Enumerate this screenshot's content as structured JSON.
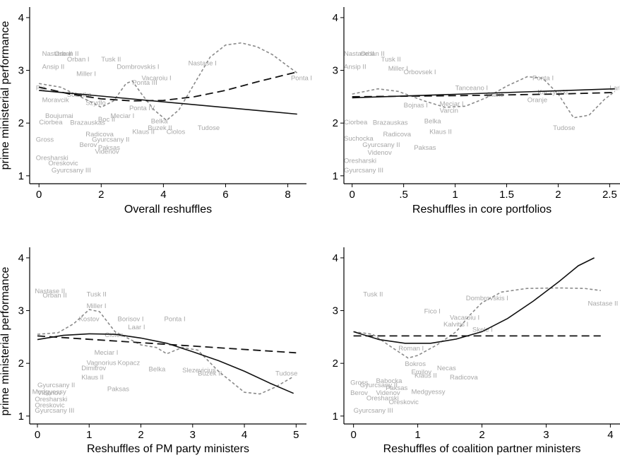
{
  "ylabel": "prime  ministerial performance",
  "chart_data": [
    {
      "type": "scatter",
      "xlabel": "Overall reshuffles",
      "ylabel": "prime  ministerial performance",
      "xlim": [
        -0.3,
        8.6
      ],
      "ylim": [
        0.85,
        4.2
      ],
      "xticks": [
        "0",
        "2",
        "4",
        "6",
        "8"
      ],
      "yticks": [
        "1",
        "2",
        "3",
        "4"
      ],
      "points": [
        {
          "label": "Nastase II",
          "x": 0.1,
          "y": 3.33
        },
        {
          "label": "Orban II",
          "x": 0.5,
          "y": 3.33
        },
        {
          "label": "Ansip II",
          "x": 0.1,
          "y": 3.08
        },
        {
          "label": "Orban I",
          "x": 0.9,
          "y": 3.22
        },
        {
          "label": "Tusk II",
          "x": 2.0,
          "y": 3.22
        },
        {
          "label": "Nastase I",
          "x": 4.8,
          "y": 3.15
        },
        {
          "label": "Dombrovskis I",
          "x": 2.5,
          "y": 3.08
        },
        {
          "label": "Miller I",
          "x": 1.2,
          "y": 2.95
        },
        {
          "label": "Vacaroiu I",
          "x": 3.3,
          "y": 2.87
        },
        {
          "label": "Ponta I",
          "x": 8.1,
          "y": 2.87
        },
        {
          "label": "Ponta III",
          "x": 3.0,
          "y": 2.78
        },
        {
          "label": "Pie",
          "x": -0.1,
          "y": 2.68
        },
        {
          "label": "Sobotka",
          "x": 0.9,
          "y": 2.55
        },
        {
          "label": "Moravcik",
          "x": 0.1,
          "y": 2.45
        },
        {
          "label": "Ponta IV",
          "x": 2.9,
          "y": 2.3
        },
        {
          "label": "Szydlo",
          "x": 1.5,
          "y": 2.4
        },
        {
          "label": "Meciar I",
          "x": 2.3,
          "y": 2.15
        },
        {
          "label": "Boc II",
          "x": 1.9,
          "y": 2.08
        },
        {
          "label": "Boujumai",
          "x": 0.2,
          "y": 2.15
        },
        {
          "label": "Ciorbea",
          "x": 0.0,
          "y": 2.03
        },
        {
          "label": "Brazauskas",
          "x": 1.0,
          "y": 2.02
        },
        {
          "label": "Belka",
          "x": 3.6,
          "y": 2.05
        },
        {
          "label": "Ciolos",
          "x": 4.1,
          "y": 1.85
        },
        {
          "label": "Buzek II",
          "x": 3.5,
          "y": 1.92
        },
        {
          "label": "Klaus II",
          "x": 3.0,
          "y": 1.85
        },
        {
          "label": "Tudose",
          "x": 5.1,
          "y": 1.92
        },
        {
          "label": "Radicova",
          "x": 1.5,
          "y": 1.8
        },
        {
          "label": "Berov",
          "x": 1.3,
          "y": 1.6
        },
        {
          "label": "Gross",
          "x": -0.1,
          "y": 1.7
        },
        {
          "label": "Gyurcsany II",
          "x": 1.7,
          "y": 1.7
        },
        {
          "label": "Paksas",
          "x": 1.9,
          "y": 1.55
        },
        {
          "label": "Videnov",
          "x": 1.8,
          "y": 1.47
        },
        {
          "label": "Oresharski",
          "x": -0.1,
          "y": 1.35
        },
        {
          "label": "Oreskovic",
          "x": 0.3,
          "y": 1.25
        },
        {
          "label": "Gyurcsany III",
          "x": 0.4,
          "y": 1.12
        }
      ],
      "curves": {
        "linear": [
          [
            0,
            2.62
          ],
          [
            8.3,
            2.17
          ]
        ],
        "quadratic": [
          [
            0,
            2.68
          ],
          [
            1,
            2.55
          ],
          [
            2,
            2.46
          ],
          [
            3,
            2.42
          ],
          [
            4,
            2.43
          ],
          [
            5,
            2.5
          ],
          [
            6,
            2.62
          ],
          [
            7,
            2.78
          ],
          [
            8.3,
            2.97
          ]
        ],
        "spline": [
          [
            0,
            2.75
          ],
          [
            0.7,
            2.68
          ],
          [
            1.5,
            2.45
          ],
          [
            2,
            2.3
          ],
          [
            2.4,
            2.42
          ],
          [
            2.8,
            2.75
          ],
          [
            3.0,
            2.8
          ],
          [
            3.3,
            2.55
          ],
          [
            3.7,
            2.25
          ],
          [
            4.1,
            2.05
          ],
          [
            4.5,
            2.25
          ],
          [
            5.0,
            2.75
          ],
          [
            5.5,
            3.25
          ],
          [
            6.0,
            3.48
          ],
          [
            6.5,
            3.52
          ],
          [
            7.0,
            3.45
          ],
          [
            7.5,
            3.3
          ],
          [
            8.0,
            3.08
          ],
          [
            8.3,
            2.95
          ]
        ]
      }
    },
    {
      "type": "scatter",
      "xlabel": "Reshuffles in core portfolios",
      "ylabel": "",
      "xlim": [
        -0.08,
        2.6
      ],
      "ylim": [
        0.85,
        4.2
      ],
      "xticks": [
        "0",
        ".5",
        "1",
        "1.5",
        "2",
        "2.5"
      ],
      "xtick_values": [
        0,
        0.5,
        1,
        1.5,
        2,
        2.5
      ],
      "yticks": [
        "1",
        "2",
        "3",
        "4"
      ],
      "points": [
        {
          "label": "Nastase II",
          "x": -0.08,
          "y": 3.33
        },
        {
          "label": "Orban II",
          "x": 0.08,
          "y": 3.33
        },
        {
          "label": "Tusk II",
          "x": 0.28,
          "y": 3.22
        },
        {
          "label": "Ansip II",
          "x": -0.08,
          "y": 3.08
        },
        {
          "label": "Miller I",
          "x": 0.35,
          "y": 3.05
        },
        {
          "label": "Orbovsek I",
          "x": 0.5,
          "y": 2.98
        },
        {
          "label": "Ponta I",
          "x": 1.75,
          "y": 2.87
        },
        {
          "label": "Tanceano I",
          "x": 1.0,
          "y": 2.68
        },
        {
          "label": "Kaczynski",
          "x": 1.8,
          "y": 2.6
        },
        {
          "label": "Gabis",
          "x": 1.3,
          "y": 2.55
        },
        {
          "label": "Lari I",
          "x": 2.5,
          "y": 2.68
        },
        {
          "label": "Oranje",
          "x": 1.7,
          "y": 2.45
        },
        {
          "label": "Meciar I",
          "x": 0.85,
          "y": 2.38
        },
        {
          "label": "Varcin",
          "x": 0.85,
          "y": 2.25
        },
        {
          "label": "Bojnas I",
          "x": 0.5,
          "y": 2.35
        },
        {
          "label": "Brazauskas",
          "x": 0.2,
          "y": 2.02
        },
        {
          "label": "Ciorbea",
          "x": -0.08,
          "y": 2.03
        },
        {
          "label": "Belka",
          "x": 0.7,
          "y": 2.05
        },
        {
          "label": "Tudose",
          "x": 1.95,
          "y": 1.92
        },
        {
          "label": "Klaus II",
          "x": 0.75,
          "y": 1.85
        },
        {
          "label": "Radicova",
          "x": 0.3,
          "y": 1.8
        },
        {
          "label": "Suchocka",
          "x": -0.08,
          "y": 1.72
        },
        {
          "label": "Gyurcsany II",
          "x": 0.1,
          "y": 1.6
        },
        {
          "label": "Paksas",
          "x": 0.6,
          "y": 1.55
        },
        {
          "label": "Videnov",
          "x": 0.15,
          "y": 1.45
        },
        {
          "label": "Oresharski",
          "x": -0.08,
          "y": 1.3
        },
        {
          "label": "Gyurcsany III",
          "x": -0.08,
          "y": 1.12
        }
      ],
      "curves": {
        "linear": [
          [
            0,
            2.48
          ],
          [
            2.55,
            2.65
          ]
        ],
        "quadratic": [
          [
            0,
            2.5
          ],
          [
            1,
            2.52
          ],
          [
            2,
            2.55
          ],
          [
            2.55,
            2.58
          ]
        ],
        "spline": [
          [
            0,
            2.55
          ],
          [
            0.25,
            2.65
          ],
          [
            0.45,
            2.6
          ],
          [
            0.7,
            2.42
          ],
          [
            0.9,
            2.3
          ],
          [
            1.1,
            2.32
          ],
          [
            1.3,
            2.48
          ],
          [
            1.5,
            2.7
          ],
          [
            1.7,
            2.88
          ],
          [
            1.85,
            2.85
          ],
          [
            2.0,
            2.55
          ],
          [
            2.15,
            2.1
          ],
          [
            2.3,
            2.15
          ],
          [
            2.45,
            2.45
          ],
          [
            2.55,
            2.6
          ]
        ]
      }
    },
    {
      "type": "scatter",
      "xlabel": "Reshuffles of PM party ministers",
      "ylabel": "prime  ministerial performance",
      "xlim": [
        -0.15,
        5.2
      ],
      "ylim": [
        0.85,
        4.2
      ],
      "xticks": [
        "0",
        "1",
        "2",
        "3",
        "4",
        "5"
      ],
      "yticks": [
        "1",
        "2",
        "3",
        "4"
      ],
      "points": [
        {
          "label": "Nastase II",
          "x": -0.05,
          "y": 3.38
        },
        {
          "label": "Orban II",
          "x": 0.1,
          "y": 3.3
        },
        {
          "label": "Tusk II",
          "x": 0.95,
          "y": 3.32
        },
        {
          "label": "Miller I",
          "x": 0.95,
          "y": 3.1
        },
        {
          "label": "Kostov",
          "x": 0.8,
          "y": 2.85
        },
        {
          "label": "Borisov I",
          "x": 1.55,
          "y": 2.85
        },
        {
          "label": "Laar I",
          "x": 1.75,
          "y": 2.7
        },
        {
          "label": "Ponta I",
          "x": 2.45,
          "y": 2.85
        },
        {
          "label": "Ciolos",
          "x": 1.3,
          "y": 2.55
        },
        {
          "label": "Meciar I",
          "x": 1.1,
          "y": 2.22
        },
        {
          "label": "Vagnorius",
          "x": 0.95,
          "y": 2.02
        },
        {
          "label": "Kopacz",
          "x": 1.55,
          "y": 2.02
        },
        {
          "label": "Dimitrov",
          "x": 0.85,
          "y": 1.92
        },
        {
          "label": "Belka",
          "x": 2.15,
          "y": 1.9
        },
        {
          "label": "Slezevicius",
          "x": 2.8,
          "y": 1.88
        },
        {
          "label": "Buzek II",
          "x": 3.1,
          "y": 1.82
        },
        {
          "label": "Tudose",
          "x": 4.6,
          "y": 1.82
        },
        {
          "label": "Klaus II",
          "x": 0.85,
          "y": 1.75
        },
        {
          "label": "Paksas",
          "x": 1.35,
          "y": 1.53
        },
        {
          "label": "Gyurcsany II",
          "x": 0.0,
          "y": 1.6
        },
        {
          "label": "Medgyessy",
          "x": -0.1,
          "y": 1.47
        },
        {
          "label": "Videnov",
          "x": 0.0,
          "y": 1.45
        },
        {
          "label": "Oresharski",
          "x": -0.05,
          "y": 1.33
        },
        {
          "label": "Oreskovic",
          "x": -0.05,
          "y": 1.22
        },
        {
          "label": "Gyurcsany III",
          "x": -0.05,
          "y": 1.12
        }
      ],
      "curves": {
        "linear": [
          [
            0,
            2.52
          ],
          [
            5,
            2.2
          ]
        ],
        "quadratic": [
          [
            0,
            2.45
          ],
          [
            0.5,
            2.53
          ],
          [
            1,
            2.56
          ],
          [
            1.5,
            2.55
          ],
          [
            2,
            2.48
          ],
          [
            2.5,
            2.38
          ],
          [
            3,
            2.22
          ],
          [
            3.5,
            2.05
          ],
          [
            4,
            1.85
          ],
          [
            4.5,
            1.62
          ],
          [
            4.95,
            1.43
          ]
        ],
        "spline": [
          [
            0,
            2.55
          ],
          [
            0.4,
            2.58
          ],
          [
            0.7,
            2.75
          ],
          [
            1.0,
            3.02
          ],
          [
            1.2,
            2.98
          ],
          [
            1.5,
            2.6
          ],
          [
            2.0,
            2.35
          ],
          [
            2.3,
            2.3
          ],
          [
            2.5,
            2.18
          ],
          [
            2.8,
            2.3
          ],
          [
            3.1,
            2.25
          ],
          [
            3.5,
            1.85
          ],
          [
            4.0,
            1.45
          ],
          [
            4.3,
            1.42
          ],
          [
            4.6,
            1.55
          ],
          [
            4.95,
            1.75
          ]
        ]
      }
    },
    {
      "type": "scatter",
      "xlabel": "Reshuffles of coalition partner ministers",
      "ylabel": "",
      "xlim": [
        -0.15,
        4.15
      ],
      "ylim": [
        0.85,
        4.2
      ],
      "xticks": [
        "0",
        "1",
        "2",
        "3",
        "4"
      ],
      "yticks": [
        "1",
        "2",
        "3",
        "4"
      ],
      "points": [
        {
          "label": "Nastase II",
          "x": 3.65,
          "y": 3.15
        },
        {
          "label": "Tusk II",
          "x": 0.15,
          "y": 3.32
        },
        {
          "label": "Dombrovskis I",
          "x": 1.75,
          "y": 3.25
        },
        {
          "label": "Fico I",
          "x": 1.1,
          "y": 3.0
        },
        {
          "label": "Vacaroiu I",
          "x": 1.5,
          "y": 2.88
        },
        {
          "label": "Kalvitis I",
          "x": 1.4,
          "y": 2.75
        },
        {
          "label": "Skele I",
          "x": 1.85,
          "y": 2.65
        },
        {
          "label": "Roman I",
          "x": 0.7,
          "y": 2.3
        },
        {
          "label": "Bokros",
          "x": 0.8,
          "y": 2.0
        },
        {
          "label": "Necas",
          "x": 1.3,
          "y": 1.92
        },
        {
          "label": "Emilov",
          "x": 0.9,
          "y": 1.85
        },
        {
          "label": "Klaus II",
          "x": 0.95,
          "y": 1.78
        },
        {
          "label": "Radicova",
          "x": 1.5,
          "y": 1.75
        },
        {
          "label": "Gross",
          "x": -0.05,
          "y": 1.65
        },
        {
          "label": "Babocka",
          "x": 0.35,
          "y": 1.68
        },
        {
          "label": "Gyurcsany II",
          "x": 0.1,
          "y": 1.6
        },
        {
          "label": "Paksas",
          "x": 0.5,
          "y": 1.55
        },
        {
          "label": "Medgyessy",
          "x": 0.9,
          "y": 1.47
        },
        {
          "label": "Berov",
          "x": -0.05,
          "y": 1.45
        },
        {
          "label": "Videnov",
          "x": 0.35,
          "y": 1.45
        },
        {
          "label": "Oresharski",
          "x": 0.2,
          "y": 1.35
        },
        {
          "label": "Oreskovic",
          "x": 0.55,
          "y": 1.28
        },
        {
          "label": "Gyurcsany III",
          "x": 0.0,
          "y": 1.12
        }
      ],
      "curves": {
        "linear": [
          [
            0,
            2.52
          ],
          [
            3.85,
            2.52
          ]
        ],
        "quadratic": [
          [
            0,
            2.6
          ],
          [
            0.4,
            2.45
          ],
          [
            0.8,
            2.38
          ],
          [
            1.2,
            2.38
          ],
          [
            1.6,
            2.46
          ],
          [
            2.0,
            2.6
          ],
          [
            2.4,
            2.85
          ],
          [
            2.8,
            3.18
          ],
          [
            3.2,
            3.55
          ],
          [
            3.5,
            3.85
          ],
          [
            3.75,
            4.0
          ]
        ],
        "spline": [
          [
            0,
            2.6
          ],
          [
            0.3,
            2.55
          ],
          [
            0.6,
            2.3
          ],
          [
            0.85,
            2.1
          ],
          [
            1.0,
            2.15
          ],
          [
            1.3,
            2.35
          ],
          [
            1.6,
            2.6
          ],
          [
            1.8,
            2.9
          ],
          [
            2.0,
            3.15
          ],
          [
            2.3,
            3.35
          ],
          [
            2.7,
            3.42
          ],
          [
            3.2,
            3.43
          ],
          [
            3.6,
            3.42
          ],
          [
            3.85,
            3.38
          ]
        ]
      }
    }
  ]
}
